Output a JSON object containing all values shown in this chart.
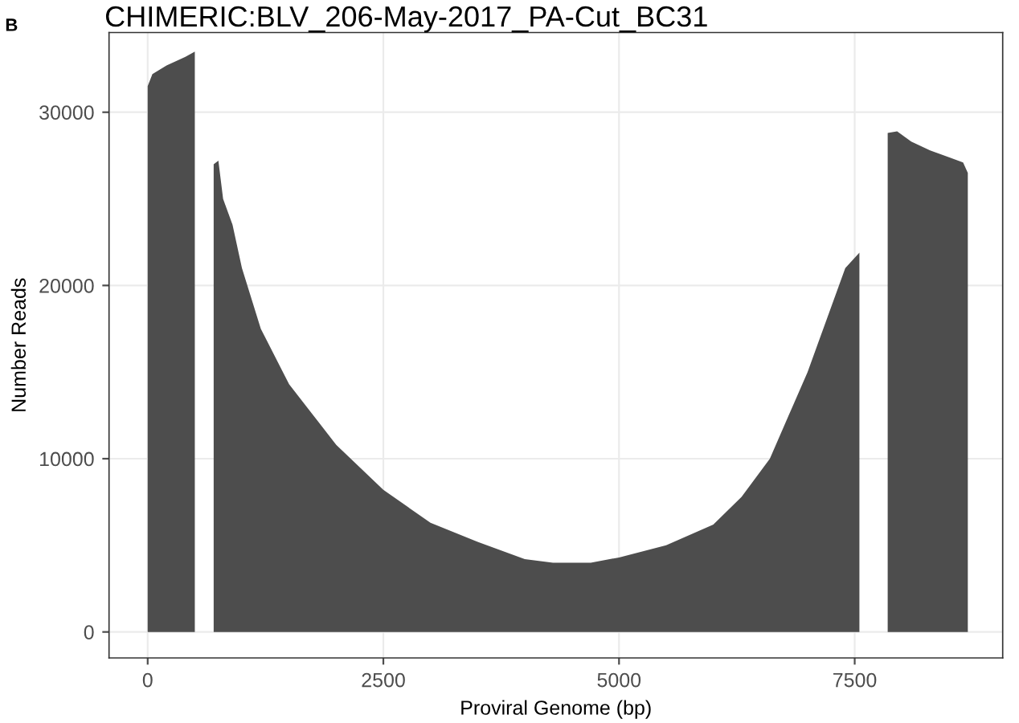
{
  "chart_data": {
    "type": "area",
    "title": "CHIMERIC:BLV_206-May-2017_PA-Cut_BC31",
    "xlabel": "Proviral Genome (bp)",
    "ylabel": "Number Reads",
    "annotations": [
      "B"
    ],
    "series": [
      {
        "color": "#4d4d4d",
        "x": [
          0,
          50,
          200,
          400,
          500,
          600,
          700,
          750,
          800,
          900,
          1000,
          1200,
          1500,
          1800,
          2000,
          2500,
          3000,
          3500,
          4000,
          4300,
          4700,
          5000,
          5500,
          6000,
          6300,
          6600,
          6800,
          7000,
          7200,
          7400,
          7550,
          7650,
          7850,
          7950,
          8100,
          8300,
          8500,
          8650,
          8700
        ],
        "values": [
          31500,
          32200,
          32700,
          33200,
          33500,
          null,
          27000,
          27200,
          25000,
          23500,
          21000,
          17500,
          14300,
          12200,
          10800,
          8200,
          6300,
          5200,
          4200,
          4000,
          4000,
          4300,
          5000,
          6200,
          7800,
          10000,
          12500,
          15000,
          18000,
          21000,
          21900,
          null,
          28800,
          28900,
          28300,
          27800,
          27400,
          27100,
          26500
        ]
      }
    ],
    "xlim": [
      -410,
      9070
    ],
    "ylim": [
      -1500,
      34600
    ],
    "xticks": [
      0,
      2500,
      5000,
      7500
    ],
    "yticks": [
      0,
      10000,
      20000,
      30000
    ],
    "grid": true
  }
}
